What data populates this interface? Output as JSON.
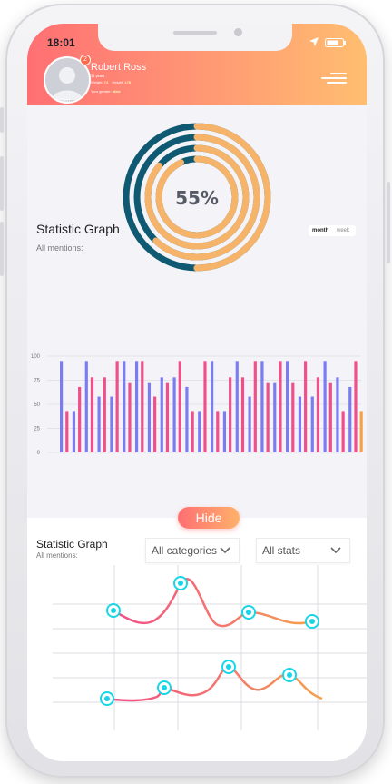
{
  "status_bar": {
    "time": "18:01"
  },
  "profile": {
    "name": "Robert Ross",
    "age": "34 years",
    "weight_label": "Weight:",
    "weight_value": "74",
    "height_label": "Height:",
    "height_value": "178",
    "gender_label": "Your gender:",
    "gender_value": "Male",
    "avatar_caption": "Robert",
    "notification_count": "2"
  },
  "progress": {
    "label": "55%",
    "value": 0.55
  },
  "stat_graph": {
    "title": "Statistic Graph",
    "subtitle": "All mentions:",
    "toggle": {
      "month": "month",
      "week": "week"
    }
  },
  "chart_data": {
    "type": "bar",
    "yticks": [
      "100",
      "75",
      "50",
      "25",
      "0"
    ],
    "ylim": [
      0,
      100
    ],
    "series": [
      {
        "color": "#7b7cf0",
        "values": [
          95,
          43,
          95,
          58,
          58,
          95,
          95,
          72,
          78,
          78,
          68,
          43,
          95,
          43,
          95,
          58,
          95,
          72,
          95,
          58,
          58,
          95,
          78,
          68
        ]
      },
      {
        "color": "#f0508a",
        "values": [
          43,
          68,
          78,
          78,
          95,
          72,
          95,
          58,
          72,
          95,
          43,
          95,
          43,
          78,
          78,
          95,
          72,
          95,
          72,
          95,
          78,
          72,
          43,
          95
        ]
      },
      {
        "color": "#f5a24a",
        "values": [
          0,
          0,
          0,
          0,
          0,
          0,
          0,
          0,
          0,
          0,
          0,
          0,
          0,
          0,
          0,
          0,
          0,
          0,
          0,
          0,
          0,
          0,
          0,
          43
        ]
      }
    ]
  },
  "bottom_panel": {
    "hide_label": "Hide",
    "title": "Statistic Graph",
    "subtitle": "All mentions:",
    "categories_select": "All categories",
    "stats_select": "All stats"
  },
  "colors": {
    "accent_start": "#ff6f73",
    "accent_end": "#ffbe70",
    "ring_dark": "#0f5a72",
    "ring_light": "#f6b46a",
    "marker": "#19d6e6"
  }
}
